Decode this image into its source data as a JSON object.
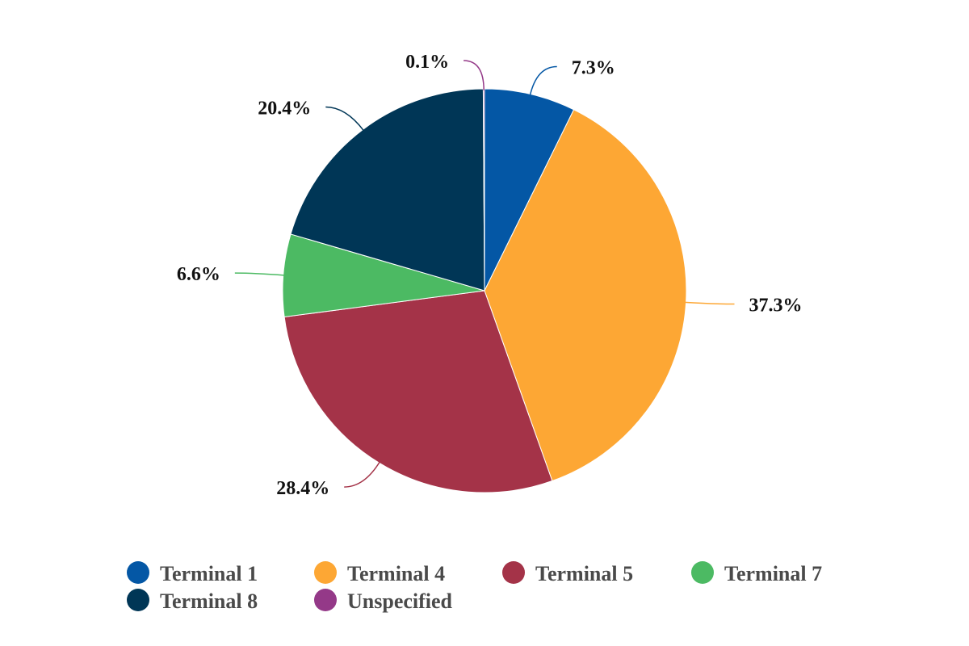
{
  "chart_data": {
    "type": "pie",
    "series": [
      {
        "name": "Terminal 1",
        "value": 7.3,
        "label": "7.3%",
        "color": "#0457a5"
      },
      {
        "name": "Terminal 4",
        "value": 37.3,
        "label": "37.3%",
        "color": "#fda734"
      },
      {
        "name": "Terminal 5",
        "value": 28.4,
        "label": "28.4%",
        "color": "#a43348"
      },
      {
        "name": "Terminal 7",
        "value": 6.6,
        "label": "6.6%",
        "color": "#4cba63"
      },
      {
        "name": "Terminal 8",
        "value": 20.4,
        "label": "20.4%",
        "color": "#003656"
      },
      {
        "name": "Unspecified",
        "value": 0.1,
        "label": "0.1%",
        "color": "#943988"
      }
    ],
    "start_angle": "top",
    "direction": "clockwise",
    "legend_position": "bottom"
  }
}
